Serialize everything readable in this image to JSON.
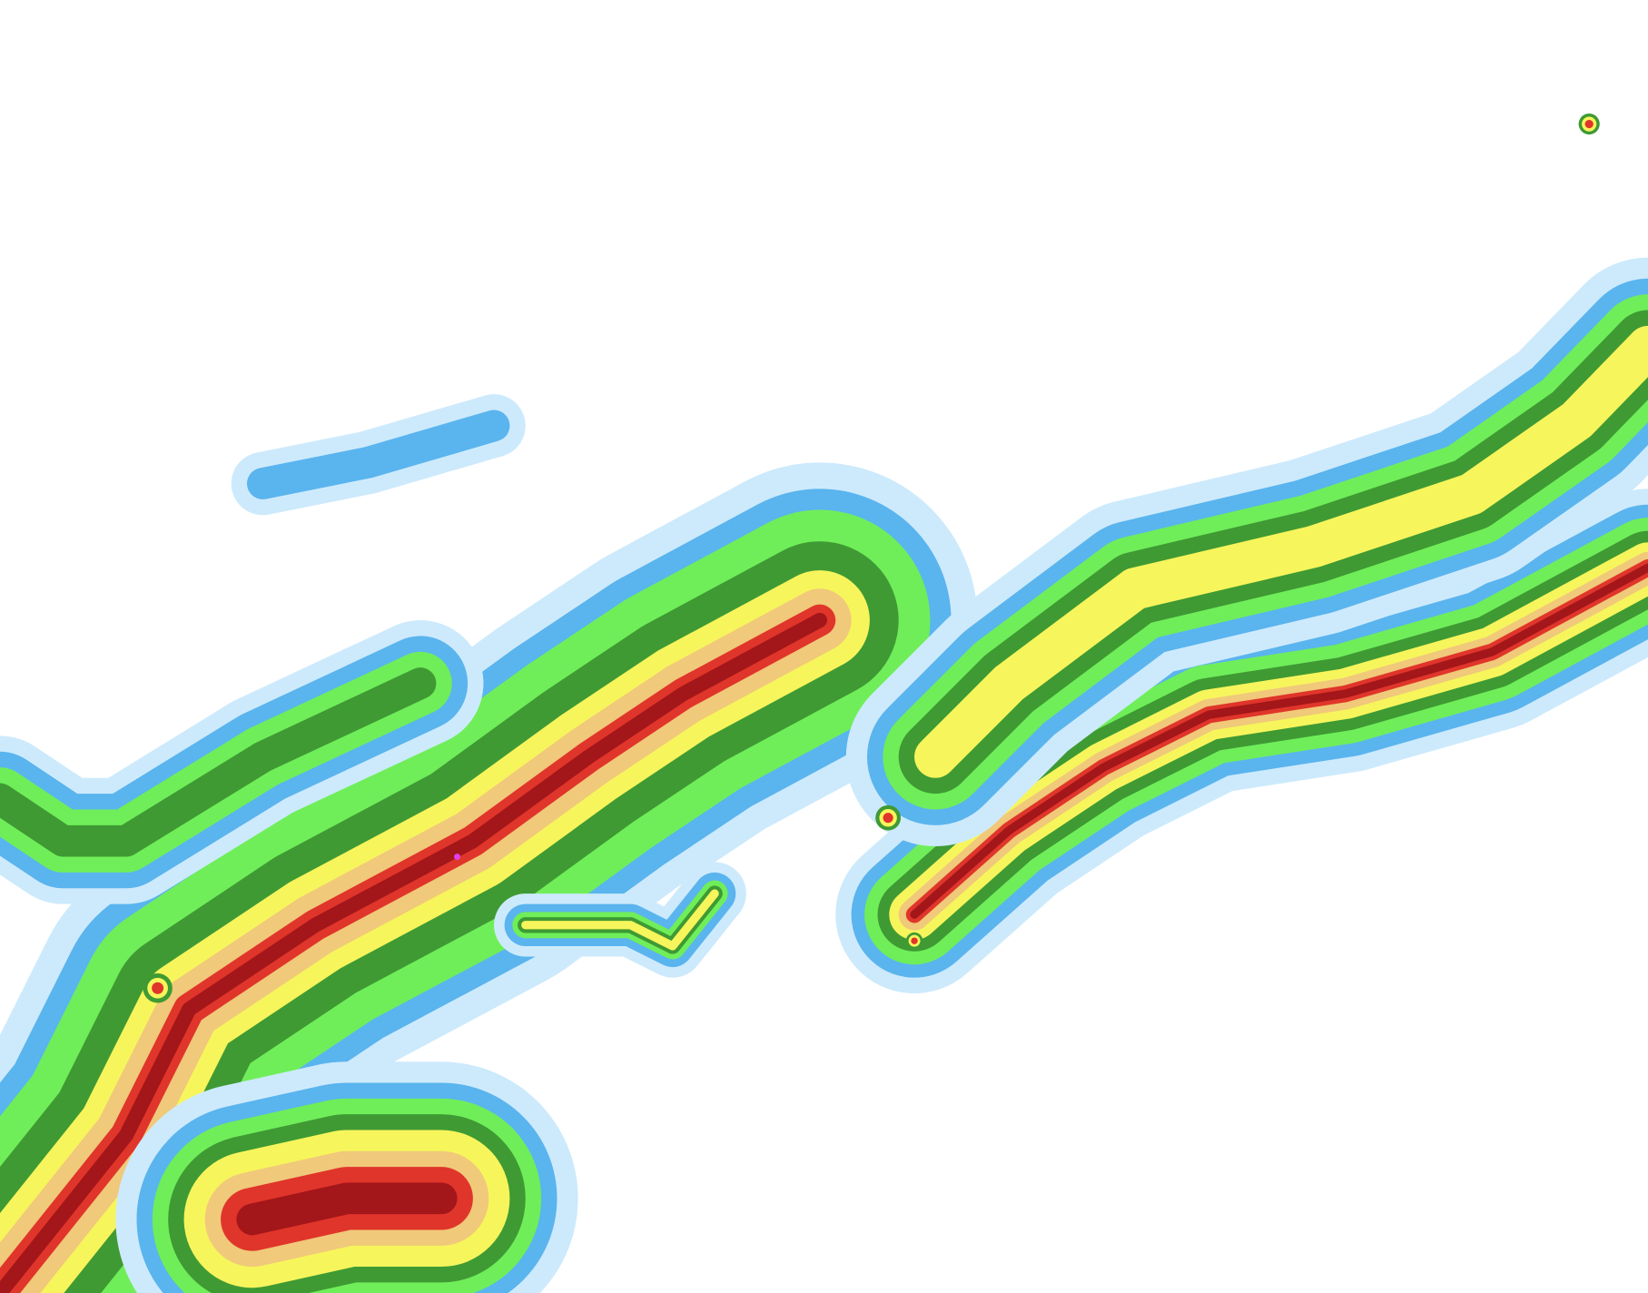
{
  "map": {
    "type": "precipitation-radar",
    "background": "#ffffff",
    "intensity_colors": [
      {
        "level": "very-light",
        "color": "#cdeafc"
      },
      {
        "level": "light",
        "color": "#5ab4ee"
      },
      {
        "level": "light-moderate",
        "color": "#6fee5a"
      },
      {
        "level": "moderate",
        "color": "#3f9a33"
      },
      {
        "level": "moderate-heavy",
        "color": "#f7f55c"
      },
      {
        "level": "heavy",
        "color": "#f0c97a"
      },
      {
        "level": "very-heavy",
        "color": "#e0352a"
      },
      {
        "level": "intense",
        "color": "#a3161a"
      },
      {
        "level": "extreme",
        "color": "#e040f0"
      }
    ]
  }
}
